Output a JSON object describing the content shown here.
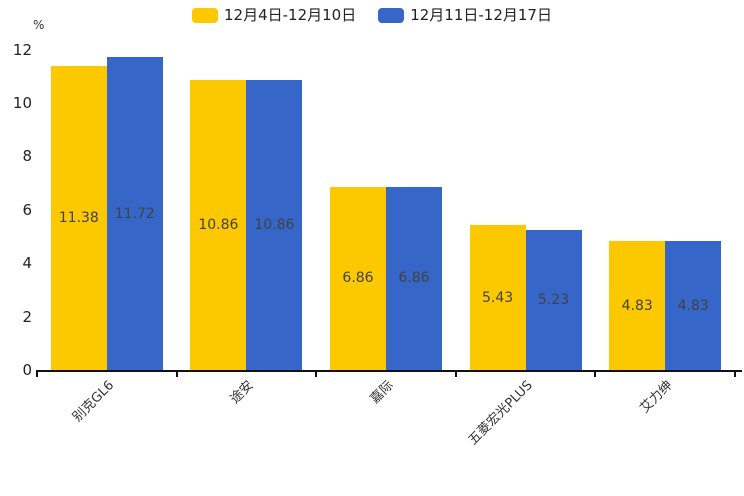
{
  "chart_data": {
    "type": "bar",
    "title": "",
    "xlabel": "",
    "ylabel": "%",
    "ylim": [
      0,
      12
    ],
    "yticks": [
      0,
      2,
      4,
      6,
      8,
      10,
      12
    ],
    "grid": false,
    "legend_position": "top",
    "bar_label_position": "inside-middle",
    "categories": [
      "别克GL6",
      "途安",
      "嘉际",
      "五菱宏光PLUS",
      "艾力绅"
    ],
    "series": [
      {
        "name": "12月4日-12月10日",
        "color": "#FCC800",
        "values": [
          11.38,
          10.86,
          6.86,
          5.43,
          4.83
        ]
      },
      {
        "name": "12月11日-12月17日",
        "color": "#3666C8",
        "values": [
          11.72,
          10.86,
          6.86,
          5.23,
          4.83
        ]
      }
    ],
    "colors": {
      "axis": "#111111",
      "tick_label": "#222222",
      "bar_label": "#424242"
    }
  }
}
